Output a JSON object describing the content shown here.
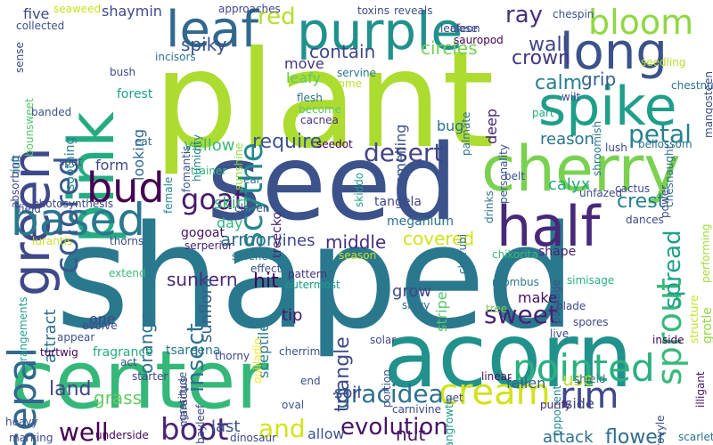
{
  "word_cloud": {
    "words": [
      {
        "text": "plant",
        "color": "#addc30"
      },
      {
        "text": "shaped",
        "color": "#2a788e"
      },
      {
        "text": "seed",
        "color": "#3b528b"
      },
      {
        "text": "acorn",
        "color": "#21918c"
      },
      {
        "text": "center",
        "color": "#35b779"
      },
      {
        "text": "cherry",
        "color": "#7ad151"
      },
      {
        "text": "purple",
        "color": "#21918c"
      },
      {
        "text": "pink",
        "color": "#25ab82"
      },
      {
        "text": "green",
        "color": "#3e4989"
      },
      {
        "text": "leaf",
        "color": "#31688e"
      },
      {
        "text": "spike",
        "color": "#1f9e89"
      },
      {
        "text": "long",
        "color": "#3b528b"
      },
      {
        "text": "half",
        "color": "#482878"
      },
      {
        "text": "based",
        "color": "#2a788e"
      },
      {
        "text": "bloom",
        "color": "#90d743"
      },
      {
        "text": "cream",
        "color": "#d2e21b"
      },
      {
        "text": "pointed",
        "color": "#2ab07f"
      },
      {
        "text": "colored",
        "color": "#38598c"
      },
      {
        "text": "sprout",
        "color": "#3ab97a"
      },
      {
        "text": "bud",
        "color": "#440154"
      },
      {
        "text": "sepal",
        "color": "#31688e"
      },
      {
        "text": "scythe",
        "color": "#23888e"
      },
      {
        "text": "gracidea",
        "color": "#2c728e"
      },
      {
        "text": "boot",
        "color": "#482475"
      },
      {
        "text": "rim",
        "color": "#3e4989"
      },
      {
        "text": "desert",
        "color": "#414487"
      },
      {
        "text": "red",
        "color": "#b5de2b"
      },
      {
        "text": "goat",
        "color": "#481a6c"
      },
      {
        "text": "insect",
        "color": "#2d708e"
      },
      {
        "text": "sweet",
        "color": "#482173"
      },
      {
        "text": "petal",
        "color": "#26828e"
      },
      {
        "text": "spread",
        "color": "#1fa088"
      },
      {
        "text": "ray",
        "color": "#46327e"
      },
      {
        "text": "crown",
        "color": "#453781"
      },
      {
        "text": "wall",
        "color": "#414487"
      },
      {
        "text": "evolution",
        "color": "#471365"
      },
      {
        "text": "land",
        "color": "#404688"
      },
      {
        "text": "well",
        "color": "#440154"
      },
      {
        "text": "and",
        "color": "#d2e21b"
      },
      {
        "text": "crest",
        "color": "#277f8e"
      },
      {
        "text": "armor",
        "color": "#2c728e"
      },
      {
        "text": "triangle",
        "color": "#3e4989"
      },
      {
        "text": "covered",
        "color": "#d2e21b"
      },
      {
        "text": "spiky",
        "color": "#3b528b"
      },
      {
        "text": "contain",
        "color": "#3f4788"
      },
      {
        "text": "circles",
        "color": "#73d056"
      },
      {
        "text": "calm",
        "color": "#27808e"
      },
      {
        "text": "grip",
        "color": "#355f8d"
      },
      {
        "text": "require",
        "color": "#3b528b"
      },
      {
        "text": "yellow",
        "color": "#3aba76"
      },
      {
        "text": "sunkern",
        "color": "#482878"
      },
      {
        "text": "sunflora",
        "color": "#355f8d"
      },
      {
        "text": "soil",
        "color": "#414487"
      },
      {
        "text": "attack",
        "color": "#2d708e"
      },
      {
        "text": "flower",
        "color": "#2f6c8e"
      },
      {
        "text": "nut",
        "color": "#471365"
      },
      {
        "text": "tip",
        "color": "#471365"
      },
      {
        "text": "middle",
        "color": "#46307e"
      },
      {
        "text": "vines",
        "color": "#3f4788"
      },
      {
        "text": "skirt",
        "color": "#31b57b"
      },
      {
        "text": "grass",
        "color": "#63cb5f"
      },
      {
        "text": "last",
        "color": "#3b528b"
      },
      {
        "text": "orange",
        "color": "#2c738e"
      },
      {
        "text": "use",
        "color": "#c0df25"
      },
      {
        "text": "reason",
        "color": "#2b748e"
      },
      {
        "text": "calyx",
        "color": "#22a884"
      },
      {
        "text": "bug",
        "color": "#2c728e"
      },
      {
        "text": "deep",
        "color": "#482173"
      },
      {
        "text": "smelling",
        "color": "#3b528b"
      },
      {
        "text": "hit",
        "color": "#440154"
      },
      {
        "text": "fallen",
        "color": "#355f8d"
      },
      {
        "text": "side",
        "color": "#3f4788"
      },
      {
        "text": "shaymin",
        "color": "#3e4989"
      },
      {
        "text": "five",
        "color": "#3f4788"
      },
      {
        "text": "looking",
        "color": "#31688e"
      },
      {
        "text": "leafy",
        "color": "#5ec962"
      },
      {
        "text": "move",
        "color": "#463480"
      },
      {
        "text": "stripe",
        "color": "#56c667"
      },
      {
        "text": "grow",
        "color": "#3f4788"
      },
      {
        "text": "make",
        "color": "#471164"
      },
      {
        "text": "treecko",
        "color": "#482475"
      },
      {
        "text": "sceptile",
        "color": "#2a788e"
      },
      {
        "text": "one",
        "color": "#3e4989"
      },
      {
        "text": "attract",
        "color": "#2e6f8e"
      },
      {
        "text": "form",
        "color": "#3f4788"
      },
      {
        "text": "day",
        "color": "#31b57b"
      },
      {
        "text": "allow",
        "color": "#3b528b"
      },
      {
        "text": "shape",
        "color": "#482475"
      },
      {
        "text": "tangrowth",
        "color": "#1f9a8a"
      },
      {
        "text": "gogoat",
        "color": "#471365"
      },
      {
        "text": "tangela",
        "color": "#404688"
      },
      {
        "text": "meganium",
        "color": "#2c728e"
      },
      {
        "text": "chespin",
        "color": "#3b528b"
      },
      {
        "text": "chesnaught",
        "color": "#2e6f8e"
      },
      {
        "text": "wilt",
        "color": "#3e4989"
      },
      {
        "text": "bellossom",
        "color": "#2c728e"
      },
      {
        "text": "grotle",
        "color": "#93d741"
      },
      {
        "text": "forest",
        "color": "#1fa088"
      },
      {
        "text": "fragrance",
        "color": "#26ad81"
      },
      {
        "text": "soothing",
        "color": "#24868e"
      },
      {
        "text": "tsareena",
        "color": "#2a788e"
      },
      {
        "text": "cherrim",
        "color": "#3b528b"
      },
      {
        "text": "starter",
        "color": "#404688"
      },
      {
        "text": "underside",
        "color": "#450559"
      },
      {
        "text": "dinosaur",
        "color": "#3f4788"
      },
      {
        "text": "bayleef",
        "color": "#3e4989"
      },
      {
        "text": "turtwig",
        "color": "#440154"
      },
      {
        "text": "flesh",
        "color": "#2c728e"
      },
      {
        "text": "become",
        "color": "#5ec962"
      },
      {
        "text": "cacnea",
        "color": "#46327e"
      },
      {
        "text": "seedot",
        "color": "#440154"
      },
      {
        "text": "servine",
        "color": "#2c728e"
      },
      {
        "text": "palmate",
        "color": "#2e6f8e"
      },
      {
        "text": "personality",
        "color": "#3b528b"
      },
      {
        "text": "skiddo",
        "color": "#1f9e89"
      },
      {
        "text": "shroomish",
        "color": "#2a768e"
      },
      {
        "text": "snivy",
        "color": "#2e6f8e"
      },
      {
        "text": "rhombus",
        "color": "#2a788e"
      },
      {
        "text": "outermost",
        "color": "#1e9c89"
      },
      {
        "text": "pattern",
        "color": "#46327e"
      },
      {
        "text": "lurantis",
        "color": "#c8e020"
      },
      {
        "text": "thorns",
        "color": "#3e4989"
      },
      {
        "text": "sunshine",
        "color": "#90d743"
      },
      {
        "text": "humidity",
        "color": "#277f8e"
      },
      {
        "text": "fomantis",
        "color": "#3b528b"
      },
      {
        "text": "female",
        "color": "#24868e"
      },
      {
        "text": "trainer",
        "color": "#31b57b"
      },
      {
        "text": "photosynthesis",
        "color": "#404688"
      },
      {
        "text": "field",
        "color": "#3e4989"
      },
      {
        "text": "cherubi",
        "color": "#2c728e"
      },
      {
        "text": "chikorita",
        "color": "#3aba76"
      },
      {
        "text": "serperior",
        "color": "#481d6f"
      },
      {
        "text": "steenee",
        "color": "#2a788e"
      },
      {
        "text": "quilladin",
        "color": "#fde725"
      },
      {
        "text": "gratitude",
        "color": "#3b528b"
      },
      {
        "text": "maractus",
        "color": "#3e4989"
      },
      {
        "text": "grovyle",
        "color": "#3b528b"
      },
      {
        "text": "illigant",
        "color": "#471365"
      },
      {
        "text": "shield",
        "color": "#2c728e"
      },
      {
        "text": "opponent",
        "color": "#238a8d"
      },
      {
        "text": "sense",
        "color": "#3e4989"
      },
      {
        "text": "absorbing",
        "color": "#414487"
      },
      {
        "text": "arrangements",
        "color": "#1f9e89"
      },
      {
        "text": "bounsweet",
        "color": "#54c568"
      },
      {
        "text": "tuft",
        "color": "#25838e"
      },
      {
        "text": "banded",
        "color": "#3b528b"
      },
      {
        "text": "marking",
        "color": "#3e4989"
      },
      {
        "text": "heavy",
        "color": "#3b528b"
      },
      {
        "text": "chestnut",
        "color": "#2d708e"
      },
      {
        "text": "mangosteen",
        "color": "#3e4989"
      },
      {
        "text": "scarlet",
        "color": "#2c728e"
      },
      {
        "text": "oval",
        "color": "#3b528b"
      },
      {
        "text": "linear",
        "color": "#471365"
      },
      {
        "text": "purify",
        "color": "#481f70"
      },
      {
        "text": "blade",
        "color": "#3e4989"
      },
      {
        "text": "spores",
        "color": "#3f4788"
      },
      {
        "text": "tree",
        "color": "#7ad151"
      },
      {
        "text": "simisage",
        "color": "#29af7f"
      },
      {
        "text": "passage",
        "color": "#3b528b"
      },
      {
        "text": "live",
        "color": "#3e4989"
      },
      {
        "text": "structure",
        "color": "#c2df23"
      },
      {
        "text": "performing",
        "color": "#a2da37"
      },
      {
        "text": "inside",
        "color": "#440154"
      },
      {
        "text": "power",
        "color": "#3e4989"
      },
      {
        "text": "cactus",
        "color": "#3e4989"
      },
      {
        "text": "dances",
        "color": "#3e4989"
      },
      {
        "text": "unfazed",
        "color": "#3e4989"
      },
      {
        "text": "belt",
        "color": "#3b528b"
      },
      {
        "text": "drinks",
        "color": "#2e6f8e"
      },
      {
        "text": "lush",
        "color": "#3e4989"
      },
      {
        "text": "part",
        "color": "#22a884"
      },
      {
        "text": "seedling",
        "color": "#b8de29"
      },
      {
        "text": "collected",
        "color": "#3b528b"
      },
      {
        "text": "seaweed",
        "color": "#c8e020"
      },
      {
        "text": "approaches",
        "color": "#404688"
      },
      {
        "text": "toxins",
        "color": "#3e4989"
      },
      {
        "text": "reveals",
        "color": "#3b528b"
      },
      {
        "text": "leafeon",
        "color": "#3e4989"
      },
      {
        "text": "close",
        "color": "#3b528b"
      },
      {
        "text": "sauropod",
        "color": "#440154"
      },
      {
        "text": "incisors",
        "color": "#2c728e"
      },
      {
        "text": "bush",
        "color": "#3e4989"
      },
      {
        "text": "come",
        "color": "#b8de29"
      },
      {
        "text": "eat",
        "color": "#2c728e"
      },
      {
        "text": "spot",
        "color": "#3e4989"
      },
      {
        "text": "ear",
        "color": "#2e6f8e"
      },
      {
        "text": "cloven",
        "color": "#3b528b"
      },
      {
        "text": "season",
        "color": "#c8e020"
      },
      {
        "text": "effect",
        "color": "#3b528b"
      },
      {
        "text": "solar",
        "color": "#3e4989"
      },
      {
        "text": "extend",
        "color": "#3aba76"
      },
      {
        "text": "appear",
        "color": "#3b528b"
      },
      {
        "text": "evolve",
        "color": "#3e4989"
      },
      {
        "text": "act",
        "color": "#3b528b"
      },
      {
        "text": "thorny",
        "color": "#3e4989"
      },
      {
        "text": "end",
        "color": "#3b528b"
      },
      {
        "text": "carnivine",
        "color": "#3e4989"
      },
      {
        "text": "portion",
        "color": "#3b528b"
      },
      {
        "text": "get",
        "color": "#3e4989"
      }
    ]
  }
}
